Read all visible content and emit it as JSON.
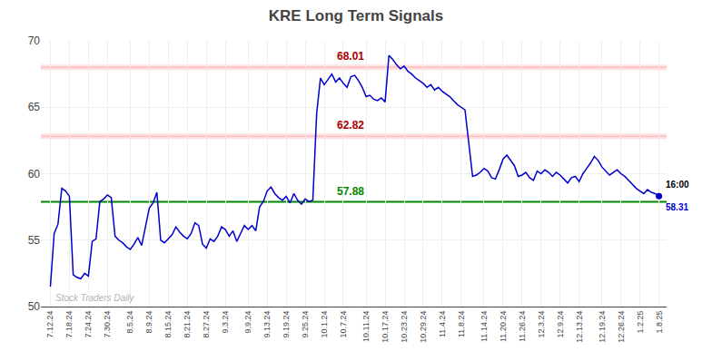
{
  "chart_data": {
    "type": "line",
    "title": "KRE Long Term Signals",
    "categories": [
      "7.12.24",
      null,
      null,
      null,
      null,
      "7.18.24",
      null,
      null,
      null,
      null,
      "7.24.24",
      null,
      null,
      null,
      null,
      "7.30.24",
      null,
      null,
      null,
      null,
      null,
      "8.5.24",
      null,
      null,
      null,
      null,
      "8.9.24",
      null,
      null,
      null,
      null,
      "8.15.24",
      null,
      null,
      null,
      null,
      "8.21.24",
      null,
      null,
      null,
      null,
      "8.27.24",
      null,
      null,
      null,
      null,
      "9.3.24",
      null,
      null,
      null,
      null,
      null,
      "9.9.24",
      null,
      null,
      null,
      null,
      "9.13.24",
      null,
      null,
      null,
      null,
      "9.19.24",
      null,
      null,
      null,
      null,
      "9.25.24",
      null,
      null,
      null,
      null,
      "10.1.24",
      null,
      null,
      null,
      null,
      "10.7.24",
      null,
      null,
      null,
      null,
      null,
      "10.11.24",
      null,
      null,
      null,
      null,
      "10.17.24",
      null,
      null,
      null,
      null,
      "10.23.24",
      null,
      null,
      null,
      null,
      "10.29.24",
      null,
      null,
      null,
      null,
      "11.4.24",
      null,
      null,
      null,
      null,
      "11.8.24",
      null,
      null,
      null,
      null,
      null,
      "11.14.24",
      null,
      null,
      null,
      null,
      "11.20.24",
      null,
      null,
      null,
      null,
      "11.26.24",
      null,
      null,
      null,
      null,
      "12.3.24",
      null,
      null,
      null,
      null,
      "12.9.24",
      null,
      null,
      null,
      null,
      "12.13.24",
      null,
      null,
      null,
      null,
      null,
      "12.19.24",
      null,
      null,
      null,
      null,
      "12.26.24",
      null,
      null,
      null,
      null,
      "1.2.25",
      null,
      null,
      null,
      null,
      "1.8.25"
    ],
    "values": [
      51.5,
      55.5,
      56.2,
      58.9,
      58.7,
      58.3,
      52.4,
      52.2,
      52.1,
      52.5,
      52.3,
      54.9,
      55.1,
      57.9,
      58.1,
      58.4,
      58.2,
      55.3,
      55.0,
      54.8,
      54.5,
      54.3,
      54.7,
      55.2,
      54.6,
      55.9,
      57.4,
      57.8,
      58.6,
      55.0,
      54.8,
      55.1,
      55.4,
      56.0,
      55.6,
      55.3,
      55.1,
      55.5,
      56.3,
      56.1,
      54.7,
      54.4,
      55.1,
      54.9,
      55.3,
      56.0,
      55.8,
      55.3,
      55.7,
      54.9,
      55.5,
      56.1,
      55.8,
      56.1,
      55.7,
      57.5,
      57.9,
      58.7,
      59.0,
      58.5,
      58.2,
      58.0,
      58.3,
      57.8,
      58.5,
      58.0,
      57.7,
      58.1,
      57.9,
      58.0,
      64.5,
      67.2,
      66.7,
      67.1,
      67.5,
      66.9,
      67.2,
      66.8,
      66.5,
      67.3,
      67.4,
      67.0,
      66.5,
      65.8,
      65.9,
      65.6,
      65.5,
      65.7,
      65.4,
      68.9,
      68.6,
      68.2,
      67.9,
      68.1,
      67.7,
      67.5,
      67.2,
      67.0,
      66.8,
      66.5,
      66.7,
      66.3,
      66.5,
      66.2,
      66.0,
      65.8,
      65.5,
      65.2,
      65.0,
      64.8,
      62.3,
      59.8,
      59.9,
      60.1,
      60.4,
      60.2,
      59.7,
      59.6,
      60.3,
      61.1,
      61.4,
      61.0,
      60.6,
      59.8,
      59.9,
      60.1,
      59.7,
      59.5,
      60.2,
      60.0,
      60.3,
      60.1,
      59.8,
      60.1,
      59.9,
      59.6,
      59.3,
      59.7,
      59.8,
      59.4,
      60.0,
      60.4,
      60.8,
      61.3,
      61.0,
      60.5,
      60.2,
      59.9,
      60.1,
      60.3,
      60.0,
      59.8,
      59.5,
      59.2,
      58.9,
      58.7,
      58.5,
      58.8,
      58.6,
      58.5,
      58.31
    ],
    "color": "#0000cc",
    "ylim": [
      50,
      70
    ],
    "yticks": [
      50,
      55,
      60,
      65,
      70
    ],
    "grid": true,
    "reference_lines": [
      {
        "value": 68.01,
        "color": "#ffaaaa",
        "label_color": "#aa0000"
      },
      {
        "value": 62.82,
        "color": "#ffaaaa",
        "label_color": "#aa0000"
      },
      {
        "value": 57.88,
        "color": "#008800",
        "label_color": "#008800"
      }
    ],
    "last_point": {
      "time": "16:00",
      "value": 58.31
    },
    "watermark": "Stock Traders Daily"
  }
}
